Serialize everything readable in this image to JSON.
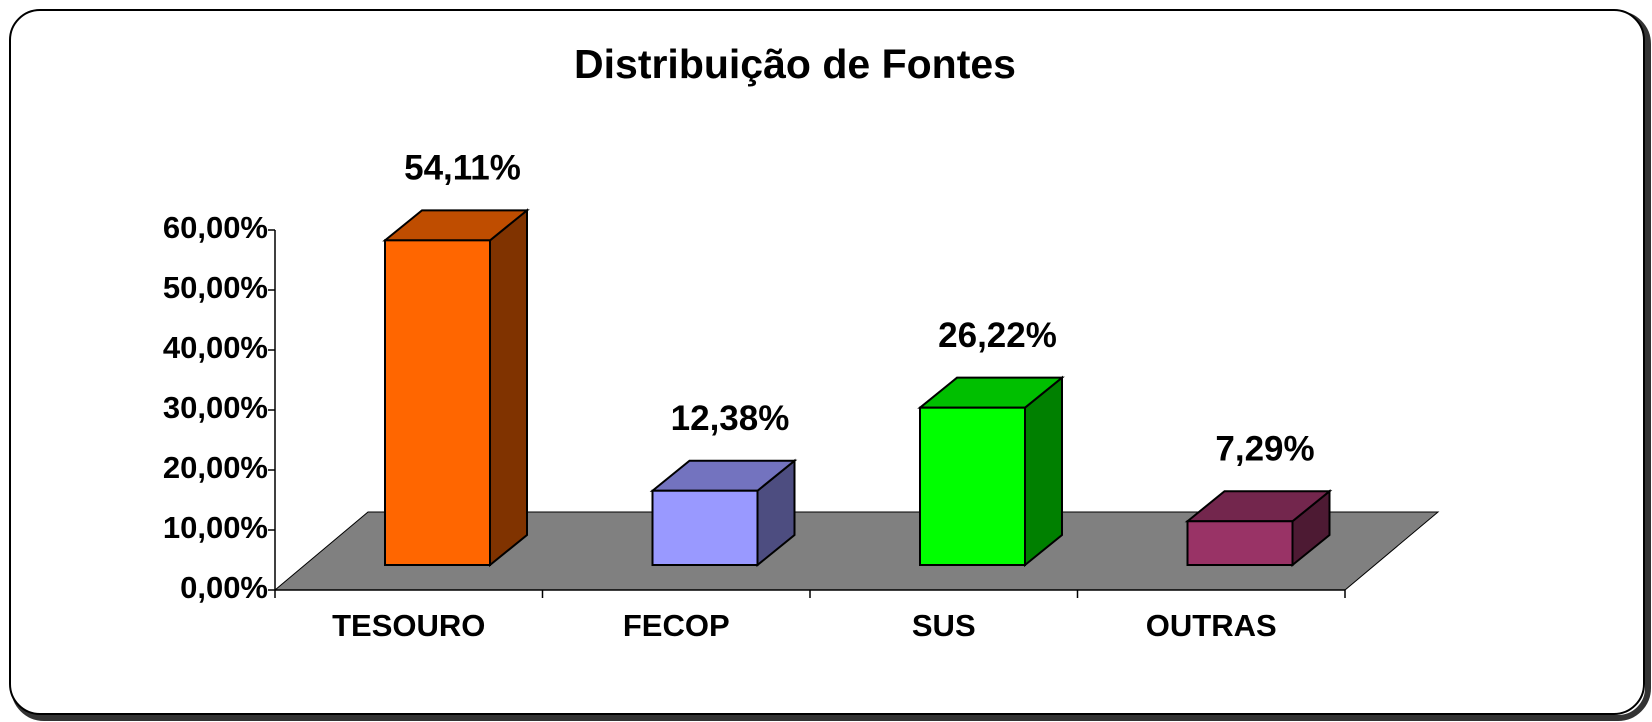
{
  "chart_data": {
    "type": "bar3d",
    "title": "Distribuição de Fontes",
    "categories": [
      "TESOURO",
      "FECOP",
      "SUS",
      "OUTRAS"
    ],
    "values": [
      54.11,
      12.38,
      26.22,
      7.29
    ],
    "value_labels": [
      "54,11%",
      "12,38%",
      "26,22%",
      "7,29%"
    ],
    "colors": [
      "#ff6600",
      "#9999ff",
      "#00ff00",
      "#993366"
    ],
    "ylim": [
      0,
      60
    ],
    "yticks": [
      {
        "value": 0,
        "label": "0,00%"
      },
      {
        "value": 10,
        "label": "10,00%"
      },
      {
        "value": 20,
        "label": "20,00%"
      },
      {
        "value": 30,
        "label": "30,00%"
      },
      {
        "value": 40,
        "label": "40,00%"
      },
      {
        "value": 50,
        "label": "50,00%"
      },
      {
        "value": 60,
        "label": "60,00%"
      }
    ]
  }
}
